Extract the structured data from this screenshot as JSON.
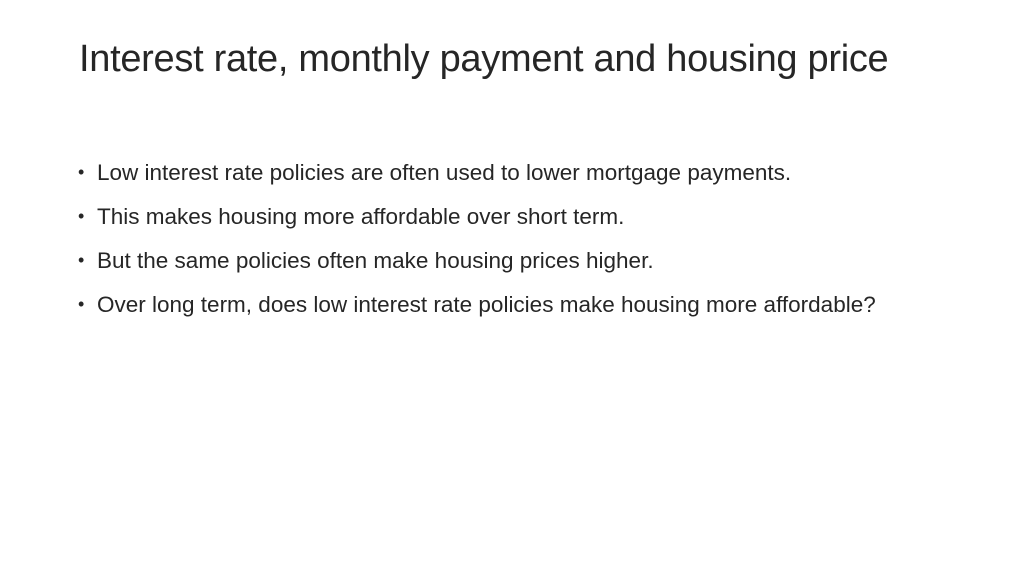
{
  "slide": {
    "title": "Interest rate, monthly payment and housing price",
    "bullet_symbol": "•",
    "bullets": [
      "Low interest rate policies are often used to lower mortgage payments.",
      "This makes housing more affordable over short term.",
      "But the same policies often make housing prices higher.",
      "Over long term, does low interest rate policies make housing more affordable?"
    ]
  }
}
